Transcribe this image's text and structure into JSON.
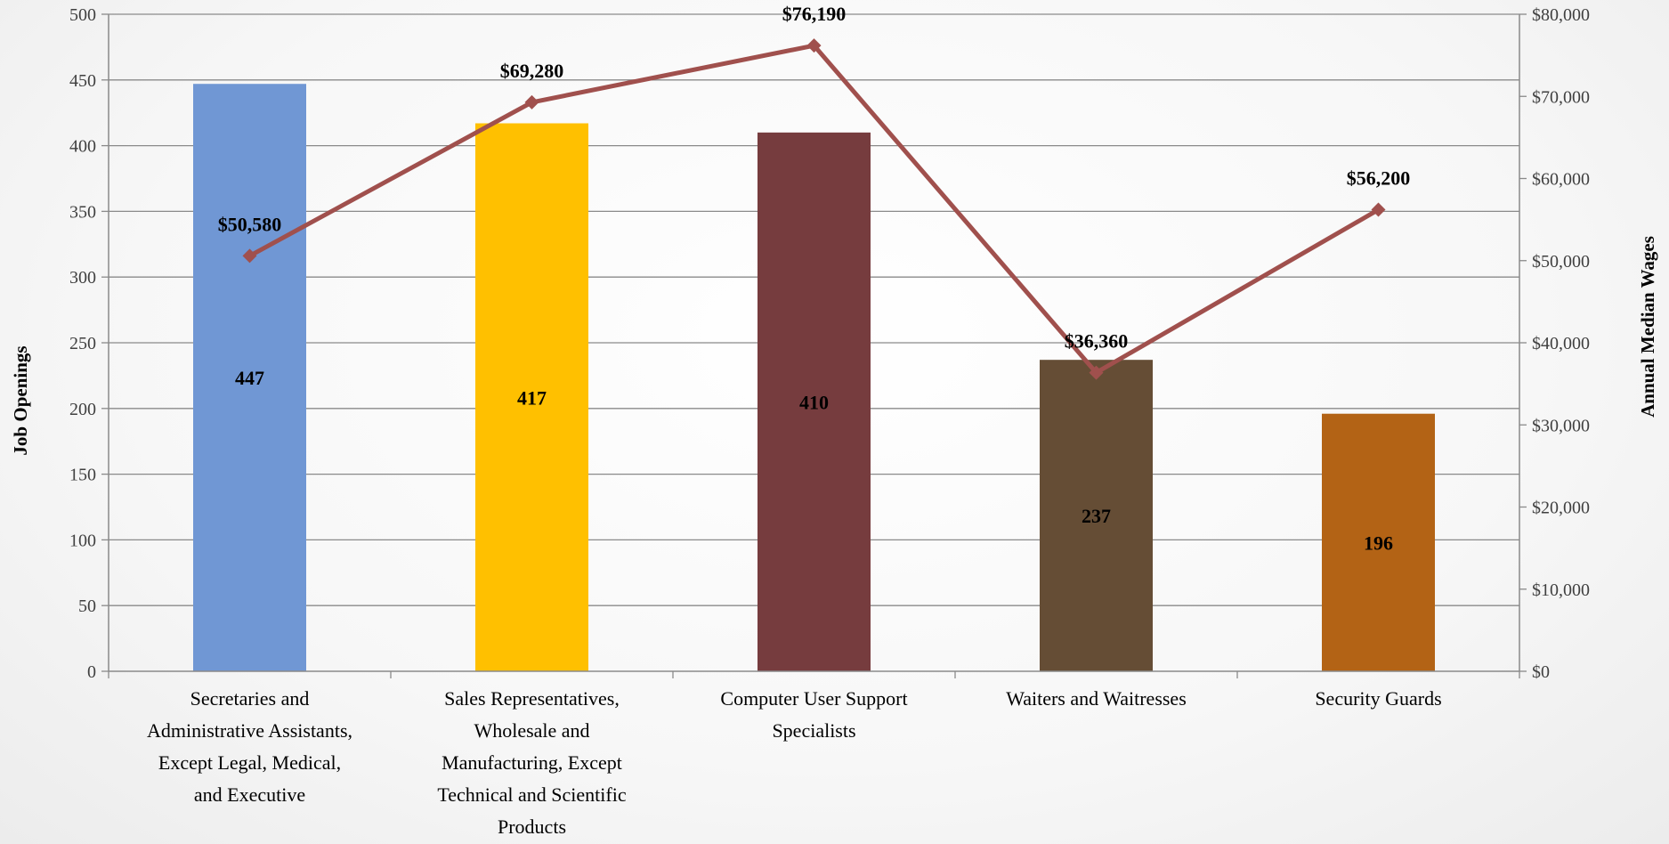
{
  "chart_data": {
    "type": "bar",
    "combo": "bar + line (secondary axis)",
    "categories": [
      [
        "Secretaries and",
        "Administrative Assistants,",
        "Except Legal, Medical,",
        "and Executive"
      ],
      [
        "Sales Representatives,",
        "Wholesale and",
        "Manufacturing, Except",
        "Technical and Scientific",
        "Products"
      ],
      [
        "Computer User Support",
        "Specialists"
      ],
      [
        "Waiters and Waitresses"
      ],
      [
        "Security Guards"
      ]
    ],
    "series": [
      {
        "values": [
          447,
          417,
          410,
          237,
          196
        ],
        "labels": [
          "447",
          "417",
          "410",
          "237",
          "196"
        ],
        "colors": [
          "#7097D4",
          "#FFC000",
          "#763C3E",
          "#654D35",
          "#B36315"
        ],
        "axis": "left"
      },
      {
        "type": "line",
        "values": [
          50580,
          69280,
          76190,
          36360,
          56200
        ],
        "labels": [
          "$50,580",
          "$69,280",
          "$76,190",
          "$36,360",
          "$56,200"
        ],
        "color": "#A0504D",
        "axis": "right"
      }
    ],
    "ylabel": "Job Openings",
    "y2label": "Annual Median Wages",
    "ylim": [
      0,
      500
    ],
    "y2lim": [
      0,
      80000
    ],
    "yticks": [
      "0",
      "50",
      "100",
      "150",
      "200",
      "250",
      "300",
      "350",
      "400",
      "450",
      "500"
    ],
    "y2ticks": [
      "$0",
      "$10,000",
      "$20,000",
      "$30,000",
      "$40,000",
      "$50,000",
      "$60,000",
      "$70,000",
      "$80,000"
    ],
    "grid": true,
    "legend": "none"
  }
}
